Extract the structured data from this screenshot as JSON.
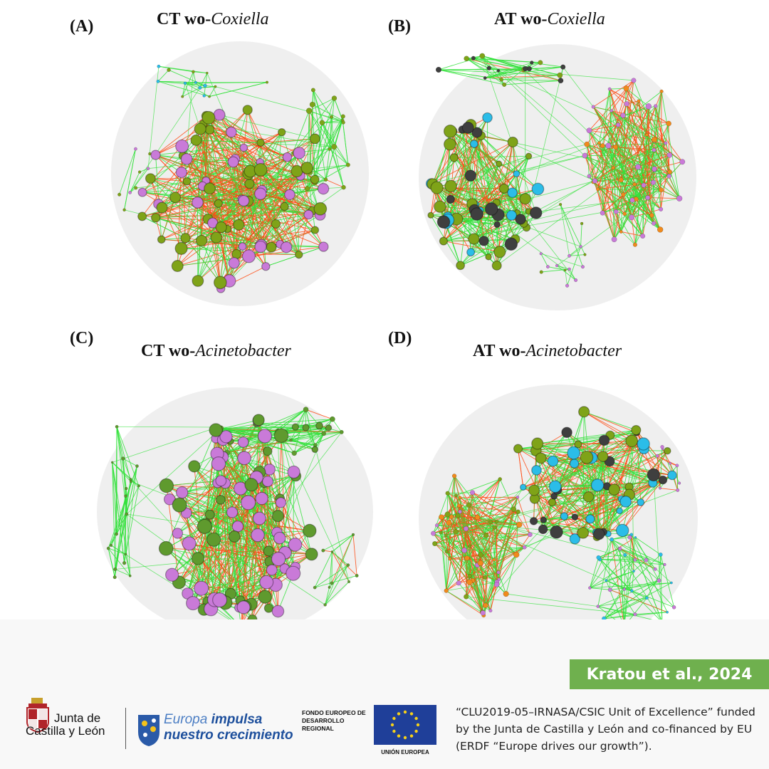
{
  "panels": [
    {
      "letter": "(A)",
      "title_plain": "CT wo-",
      "title_italic": "Coxiella"
    },
    {
      "letter": "(B)",
      "title_plain": "AT wo-",
      "title_italic": "Coxiella"
    },
    {
      "letter": "(C)",
      "title_plain": "CT wo-",
      "title_italic": "Acinetobacter"
    },
    {
      "letter": "(D)",
      "title_plain": "AT wo-",
      "title_italic": "Acinetobacter"
    }
  ],
  "colors": {
    "positive_edge": "#33e23b",
    "negative_edge": "#ff4a12",
    "node_pink": "#c97ad8",
    "node_olive": "#7fa318",
    "node_green": "#5f9a2e",
    "node_dark": "#3f3f3f",
    "node_cyan": "#2bbde8",
    "node_orange": "#f08a1c",
    "background_disc": "#efefef",
    "citation_bg": "#6fb04e"
  },
  "footer": {
    "citation": "Kratou et al., 2024",
    "jcyl_line1": "Junta de",
    "jcyl_line2": "Castilla y León",
    "europa_word": "Europa",
    "europa_rest": "impulsa",
    "europa_line2": "nuestro crecimiento",
    "fondo_text": "FONDO EUROPEO DE DESARROLLO REGIONAL",
    "eu_label": "UNIÓN EUROPEA",
    "funding_text": "“CLU2019-05–IRNASA/CSIC Unit of Excellence” funded by the Junta de Castilla y León and co-financed by EU (ERDF “Europe drives our growth”)."
  }
}
